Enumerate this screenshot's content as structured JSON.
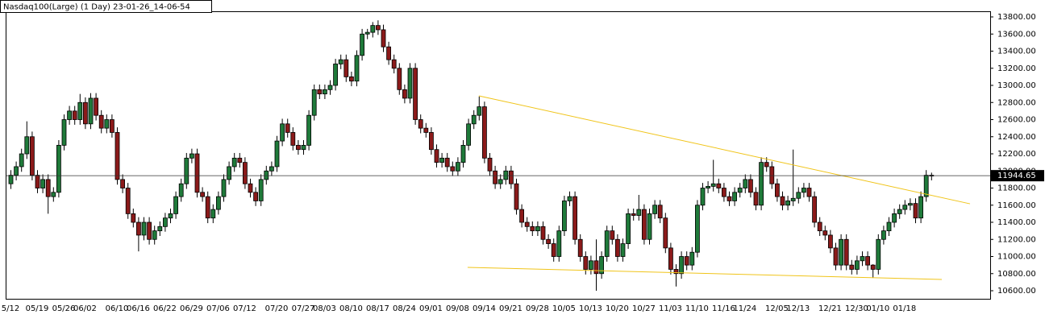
{
  "chart_data": {
    "type": "candlestick",
    "title": "Nasdaq100(Large) (1 Day) 23-01-26_14-06-54",
    "categories": [
      "5/12",
      null,
      null,
      null,
      null,
      "05/19",
      null,
      null,
      null,
      null,
      "05/26",
      null,
      null,
      null,
      "06/02",
      null,
      null,
      null,
      null,
      null,
      "06/10",
      null,
      null,
      null,
      "06/16",
      null,
      null,
      null,
      null,
      "06/22",
      null,
      null,
      null,
      null,
      "06/29",
      null,
      null,
      null,
      null,
      "07/06",
      null,
      null,
      null,
      null,
      "07/12",
      null,
      null,
      null,
      null,
      null,
      "07/20",
      null,
      null,
      null,
      null,
      "07/27",
      null,
      null,
      null,
      "08/03",
      null,
      null,
      null,
      null,
      "08/10",
      null,
      null,
      null,
      null,
      "08/17",
      null,
      null,
      null,
      null,
      "08/24",
      null,
      null,
      null,
      null,
      "09/01",
      null,
      null,
      null,
      null,
      "09/08",
      null,
      null,
      null,
      null,
      "09/14",
      null,
      null,
      null,
      null,
      "09/21",
      null,
      null,
      null,
      null,
      "09/28",
      null,
      null,
      null,
      null,
      "10/05",
      null,
      null,
      null,
      null,
      "10/13",
      null,
      null,
      null,
      null,
      "10/20",
      null,
      null,
      null,
      null,
      "10/27",
      null,
      null,
      null,
      null,
      "11/03",
      null,
      null,
      null,
      null,
      "11/10",
      null,
      null,
      null,
      null,
      "11/16",
      null,
      null,
      null,
      "11/24",
      null,
      null,
      null,
      null,
      null,
      "12/05",
      null,
      null,
      null,
      "12/13",
      null,
      null,
      null,
      null,
      null,
      "12/21",
      null,
      null,
      null,
      null,
      "12/30",
      null,
      null,
      null,
      "01/10",
      null,
      null,
      null,
      null,
      "01/18",
      null,
      null,
      null,
      null,
      null
    ],
    "candles": [
      [
        11850,
        12010,
        11790,
        11950
      ],
      [
        11950,
        12110,
        11890,
        12050
      ],
      [
        12050,
        12260,
        11990,
        12200
      ],
      [
        12200,
        12580,
        12140,
        12400
      ],
      [
        12400,
        12460,
        11890,
        11950
      ],
      [
        11950,
        12010,
        11740,
        11800
      ],
      [
        11800,
        11960,
        11740,
        11900
      ],
      [
        11900,
        11960,
        11500,
        11700
      ],
      [
        11700,
        11810,
        11640,
        11750
      ],
      [
        11750,
        12360,
        11690,
        12300
      ],
      [
        12300,
        12660,
        12240,
        12600
      ],
      [
        12600,
        12760,
        12540,
        12700
      ],
      [
        12700,
        12760,
        12540,
        12600
      ],
      [
        12600,
        12900,
        12540,
        12800
      ],
      [
        12800,
        12860,
        12490,
        12550
      ],
      [
        12550,
        12910,
        12490,
        12850
      ],
      [
        12850,
        12910,
        12590,
        12650
      ],
      [
        12650,
        12710,
        12440,
        12500
      ],
      [
        12500,
        12660,
        12440,
        12600
      ],
      [
        12600,
        12660,
        12390,
        12450
      ],
      [
        12450,
        12510,
        11840,
        11900
      ],
      [
        11900,
        11960,
        11740,
        11800
      ],
      [
        11800,
        11860,
        11440,
        11500
      ],
      [
        11500,
        11560,
        11340,
        11400
      ],
      [
        11400,
        11460,
        11060,
        11250
      ],
      [
        11250,
        11460,
        11190,
        11400
      ],
      [
        11400,
        11460,
        11140,
        11200
      ],
      [
        11200,
        11360,
        11140,
        11300
      ],
      [
        11300,
        11410,
        11240,
        11350
      ],
      [
        11350,
        11510,
        11290,
        11450
      ],
      [
        11450,
        11560,
        11390,
        11500
      ],
      [
        11500,
        11760,
        11440,
        11700
      ],
      [
        11700,
        11910,
        11640,
        11850
      ],
      [
        11850,
        12210,
        11790,
        12150
      ],
      [
        12150,
        12260,
        12090,
        12200
      ],
      [
        12200,
        12260,
        11690,
        11750
      ],
      [
        11750,
        11810,
        11640,
        11700
      ],
      [
        11700,
        11760,
        11390,
        11450
      ],
      [
        11450,
        11610,
        11390,
        11550
      ],
      [
        11550,
        11760,
        11490,
        11700
      ],
      [
        11700,
        11960,
        11640,
        11900
      ],
      [
        11900,
        12110,
        11840,
        12050
      ],
      [
        12050,
        12210,
        11990,
        12150
      ],
      [
        12150,
        12210,
        12040,
        12100
      ],
      [
        12100,
        12160,
        11790,
        11850
      ],
      [
        11850,
        11910,
        11690,
        11750
      ],
      [
        11750,
        11810,
        11590,
        11650
      ],
      [
        11650,
        11960,
        11590,
        11900
      ],
      [
        11900,
        12060,
        11840,
        12000
      ],
      [
        12000,
        12110,
        11940,
        12050
      ],
      [
        12050,
        12410,
        11990,
        12350
      ],
      [
        12350,
        12610,
        12290,
        12550
      ],
      [
        12550,
        12610,
        12390,
        12450
      ],
      [
        12450,
        12510,
        12240,
        12300
      ],
      [
        12300,
        12360,
        12190,
        12250
      ],
      [
        12250,
        12360,
        12190,
        12300
      ],
      [
        12300,
        12710,
        12240,
        12650
      ],
      [
        12650,
        13010,
        12590,
        12950
      ],
      [
        12950,
        13010,
        12840,
        12900
      ],
      [
        12900,
        13010,
        12840,
        12950
      ],
      [
        12950,
        13060,
        12890,
        13000
      ],
      [
        13000,
        13310,
        12940,
        13250
      ],
      [
        13250,
        13360,
        13190,
        13300
      ],
      [
        13300,
        13360,
        13040,
        13100
      ],
      [
        13100,
        13160,
        12990,
        13050
      ],
      [
        13050,
        13410,
        12990,
        13350
      ],
      [
        13350,
        13660,
        13290,
        13600
      ],
      [
        13600,
        13660,
        13540,
        13620
      ],
      [
        13620,
        13740,
        13560,
        13700
      ],
      [
        13700,
        13760,
        13590,
        13650
      ],
      [
        13650,
        13710,
        13390,
        13450
      ],
      [
        13450,
        13510,
        13240,
        13300
      ],
      [
        13300,
        13360,
        13140,
        13200
      ],
      [
        13200,
        13260,
        12890,
        12950
      ],
      [
        12950,
        13010,
        12790,
        12850
      ],
      [
        12850,
        13260,
        12790,
        13200
      ],
      [
        13200,
        13260,
        12540,
        12600
      ],
      [
        12600,
        12660,
        12440,
        12500
      ],
      [
        12500,
        12560,
        12390,
        12450
      ],
      [
        12450,
        12510,
        12190,
        12250
      ],
      [
        12250,
        12310,
        12040,
        12100
      ],
      [
        12100,
        12210,
        12040,
        12150
      ],
      [
        12150,
        12210,
        11990,
        12050
      ],
      [
        12050,
        12110,
        11940,
        12000
      ],
      [
        12000,
        12160,
        11940,
        12100
      ],
      [
        12100,
        12360,
        12040,
        12300
      ],
      [
        12300,
        12610,
        12240,
        12550
      ],
      [
        12550,
        12710,
        12490,
        12650
      ],
      [
        12650,
        12870,
        12590,
        12750
      ],
      [
        12750,
        12810,
        12090,
        12150
      ],
      [
        12150,
        12210,
        11940,
        12000
      ],
      [
        12000,
        12060,
        11790,
        11850
      ],
      [
        11850,
        11960,
        11790,
        11900
      ],
      [
        11900,
        12060,
        11840,
        12000
      ],
      [
        12000,
        12060,
        11790,
        11850
      ],
      [
        11850,
        11910,
        11490,
        11550
      ],
      [
        11550,
        11610,
        11340,
        11400
      ],
      [
        11400,
        11460,
        11290,
        11350
      ],
      [
        11350,
        11410,
        11240,
        11300
      ],
      [
        11300,
        11410,
        11240,
        11350
      ],
      [
        11350,
        11410,
        11140,
        11200
      ],
      [
        11200,
        11260,
        11090,
        11150
      ],
      [
        11150,
        11210,
        10940,
        11000
      ],
      [
        11000,
        11360,
        10940,
        11300
      ],
      [
        11300,
        11710,
        11240,
        11650
      ],
      [
        11650,
        11760,
        11590,
        11700
      ],
      [
        11700,
        11760,
        11140,
        11200
      ],
      [
        11200,
        11260,
        10940,
        11000
      ],
      [
        11000,
        11060,
        10790,
        10850
      ],
      [
        10850,
        11010,
        10790,
        10950
      ],
      [
        10950,
        11200,
        10600,
        10800
      ],
      [
        10800,
        11060,
        10740,
        11000
      ],
      [
        11000,
        11360,
        10940,
        11300
      ],
      [
        11300,
        11360,
        11140,
        11200
      ],
      [
        11200,
        11260,
        10940,
        11000
      ],
      [
        11000,
        11210,
        10940,
        11150
      ],
      [
        11150,
        11560,
        11090,
        11500
      ],
      [
        11500,
        11560,
        11420,
        11480
      ],
      [
        11480,
        11720,
        11420,
        11550
      ],
      [
        11550,
        11610,
        11140,
        11200
      ],
      [
        11200,
        11560,
        11140,
        11500
      ],
      [
        11500,
        11660,
        11440,
        11600
      ],
      [
        11600,
        11660,
        11390,
        11450
      ],
      [
        11450,
        11510,
        11040,
        11100
      ],
      [
        11100,
        11160,
        10790,
        10850
      ],
      [
        10850,
        10910,
        10650,
        10800
      ],
      [
        10800,
        11060,
        10740,
        11000
      ],
      [
        11000,
        11060,
        10840,
        10900
      ],
      [
        10900,
        11110,
        10840,
        11050
      ],
      [
        11050,
        11660,
        10990,
        11600
      ],
      [
        11600,
        11860,
        11540,
        11800
      ],
      [
        11800,
        11880,
        11740,
        11820
      ],
      [
        11820,
        12130,
        11760,
        11850
      ],
      [
        11850,
        11910,
        11740,
        11800
      ],
      [
        11800,
        11860,
        11640,
        11700
      ],
      [
        11700,
        11760,
        11590,
        11650
      ],
      [
        11650,
        11810,
        11590,
        11750
      ],
      [
        11750,
        11860,
        11690,
        11800
      ],
      [
        11800,
        11960,
        11740,
        11900
      ],
      [
        11900,
        11960,
        11690,
        11750
      ],
      [
        11750,
        11810,
        11540,
        11600
      ],
      [
        11600,
        12160,
        11540,
        12100
      ],
      [
        12100,
        12160,
        11990,
        12050
      ],
      [
        12050,
        12110,
        11790,
        11850
      ],
      [
        11850,
        11910,
        11640,
        11700
      ],
      [
        11700,
        11760,
        11540,
        11600
      ],
      [
        11600,
        11710,
        11540,
        11650
      ],
      [
        11650,
        12250,
        11590,
        11680
      ],
      [
        11680,
        11810,
        11620,
        11750
      ],
      [
        11750,
        11860,
        11690,
        11800
      ],
      [
        11800,
        11860,
        11640,
        11700
      ],
      [
        11700,
        11760,
        11340,
        11400
      ],
      [
        11400,
        11460,
        11240,
        11300
      ],
      [
        11300,
        11360,
        11190,
        11250
      ],
      [
        11250,
        11310,
        11040,
        11100
      ],
      [
        11100,
        11160,
        10840,
        10900
      ],
      [
        10900,
        11260,
        10840,
        11200
      ],
      [
        11200,
        11260,
        10840,
        10900
      ],
      [
        10900,
        10960,
        10790,
        10850
      ],
      [
        10850,
        11010,
        10790,
        10950
      ],
      [
        10950,
        11060,
        10890,
        11000
      ],
      [
        11000,
        11060,
        10840,
        10900
      ],
      [
        10900,
        10910,
        10750,
        10850
      ],
      [
        10850,
        11260,
        10790,
        11200
      ],
      [
        11200,
        11360,
        11140,
        11300
      ],
      [
        11300,
        11460,
        11240,
        11400
      ],
      [
        11400,
        11560,
        11340,
        11500
      ],
      [
        11500,
        11610,
        11440,
        11550
      ],
      [
        11550,
        11660,
        11490,
        11600
      ],
      [
        11600,
        11680,
        11540,
        11620
      ],
      [
        11620,
        11680,
        11390,
        11450
      ],
      [
        11450,
        11760,
        11390,
        11700
      ],
      [
        11700,
        12010,
        11640,
        11950
      ],
      [
        11950,
        11980,
        11890,
        11940
      ]
    ],
    "up_color": "#1f7a3a",
    "down_color": "#8b1a1a",
    "last_price": 11944.65,
    "trendlines": [
      {
        "x": [
          88,
          180.3
        ],
        "y": [
          12878,
          11616
        ],
        "color": "#f0c419"
      },
      {
        "x": [
          85.9,
          175
        ],
        "y": [
          10873,
          10732
        ],
        "color": "#f0c419"
      }
    ],
    "ylim": [
      10506,
      13866
    ],
    "yticks": [
      {
        "value": 10600,
        "label": "10600.00"
      },
      {
        "value": 10800,
        "label": "10800.00"
      },
      {
        "value": 11000,
        "label": "11000.00"
      },
      {
        "value": 11200,
        "label": "11200.00"
      },
      {
        "value": 11400,
        "label": "11400.00"
      },
      {
        "value": 11600,
        "label": "11600.00"
      },
      {
        "value": 11800,
        "label": "11800.00"
      },
      {
        "value": 12000,
        "label": "12000.00"
      },
      {
        "value": 12200,
        "label": "12200.00"
      },
      {
        "value": 12400,
        "label": "12400.00"
      },
      {
        "value": 12600,
        "label": "12600.00"
      },
      {
        "value": 12800,
        "label": "12800.00"
      },
      {
        "value": 13000,
        "label": "13000.00"
      },
      {
        "value": 13200,
        "label": "13200.00"
      },
      {
        "value": 13400,
        "label": "13400.00"
      },
      {
        "value": 13600,
        "label": "13600.00"
      },
      {
        "value": 13800,
        "label": "13800.00"
      }
    ]
  }
}
